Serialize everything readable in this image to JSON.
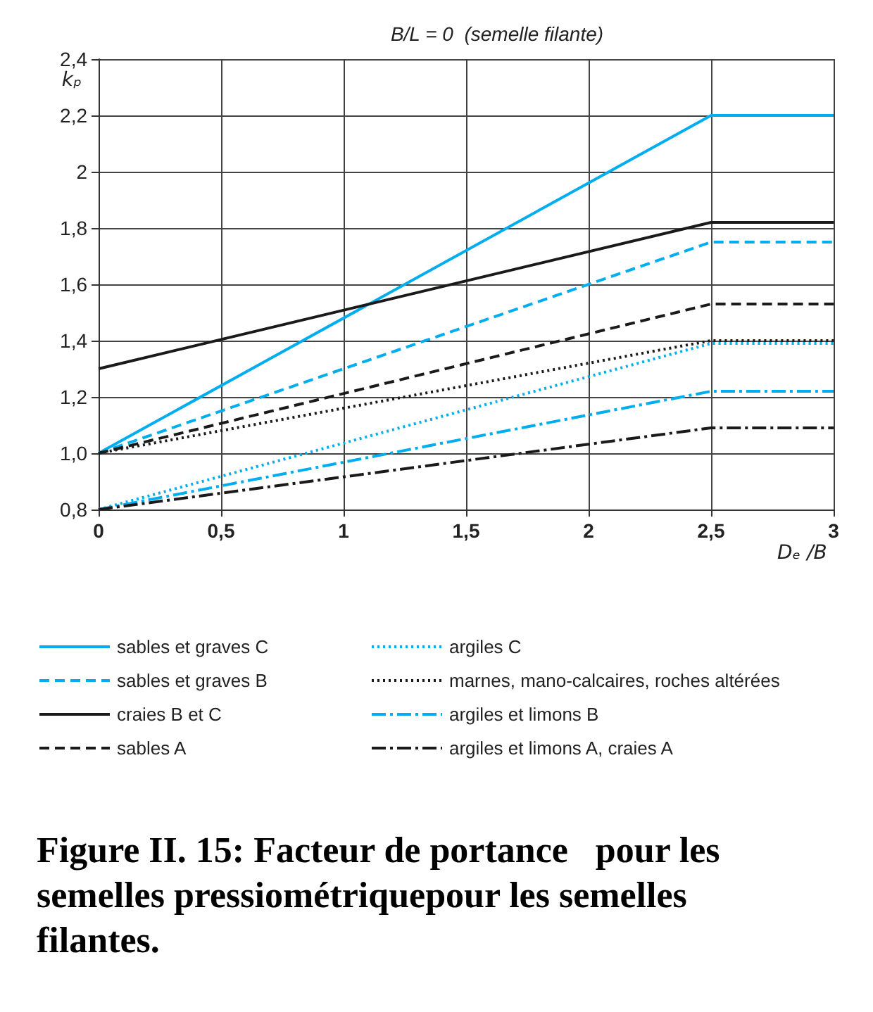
{
  "chart_data": {
    "type": "line",
    "title": "B/L = 0  (semelle filante)",
    "xlabel": "Dₑ /B",
    "ylabel": "kₚ",
    "x": [
      0,
      2.5,
      3
    ],
    "series": [
      {
        "name": "sables et graves C",
        "color": "#00aeef",
        "line_style": "solid",
        "values": [
          1.0,
          2.2,
          2.2
        ]
      },
      {
        "name": "sables et graves B",
        "color": "#00aeef",
        "line_style": "dashed",
        "values": [
          1.0,
          1.75,
          1.75
        ]
      },
      {
        "name": "craies B et C",
        "color": "#1a1a1a",
        "line_style": "solid",
        "values": [
          1.3,
          1.82,
          1.82
        ]
      },
      {
        "name": "sables A",
        "color": "#1a1a1a",
        "line_style": "dashed",
        "values": [
          1.0,
          1.53,
          1.53
        ]
      },
      {
        "name": "argiles C",
        "color": "#00aeef",
        "line_style": "dotted",
        "values": [
          0.8,
          1.39,
          1.39
        ]
      },
      {
        "name": "marnes, mano-calcaires, roches altérées",
        "color": "#1a1a1a",
        "line_style": "dotted",
        "values": [
          1.0,
          1.4,
          1.4
        ]
      },
      {
        "name": "argiles et limons B",
        "color": "#00aeef",
        "line_style": "dashdot",
        "values": [
          0.8,
          1.22,
          1.22
        ]
      },
      {
        "name": "argiles et limons A, craies A",
        "color": "#1a1a1a",
        "line_style": "dashdot",
        "values": [
          0.8,
          1.09,
          1.09
        ]
      }
    ],
    "xlim": [
      0,
      3
    ],
    "xticks": [
      0,
      {
        "value": 0.5,
        "label": "0,5"
      },
      1,
      {
        "value": 1.5,
        "label": "1,5"
      },
      2,
      {
        "value": 2.5,
        "label": "2,5"
      },
      3
    ],
    "ylim": [
      0.8,
      2.4
    ],
    "yticks": [
      {
        "value": 0.8,
        "label": "0,8"
      },
      {
        "value": 1.0,
        "label": "1,0"
      },
      {
        "value": 1.2,
        "label": "1,2"
      },
      {
        "value": 1.4,
        "label": "1,4"
      },
      {
        "value": 1.6,
        "label": "1,6"
      },
      {
        "value": 1.8,
        "label": "1,8"
      },
      2,
      {
        "value": 2.2,
        "label": "2,2"
      },
      {
        "value": 2.4,
        "label": "2,4"
      }
    ],
    "grid": true,
    "legend": "bottom",
    "marker": "none",
    "annotations": [
      "Figure II. 15: Facteur de portance   pour les semelles pressiométriquepour les semelles filantes."
    ]
  }
}
